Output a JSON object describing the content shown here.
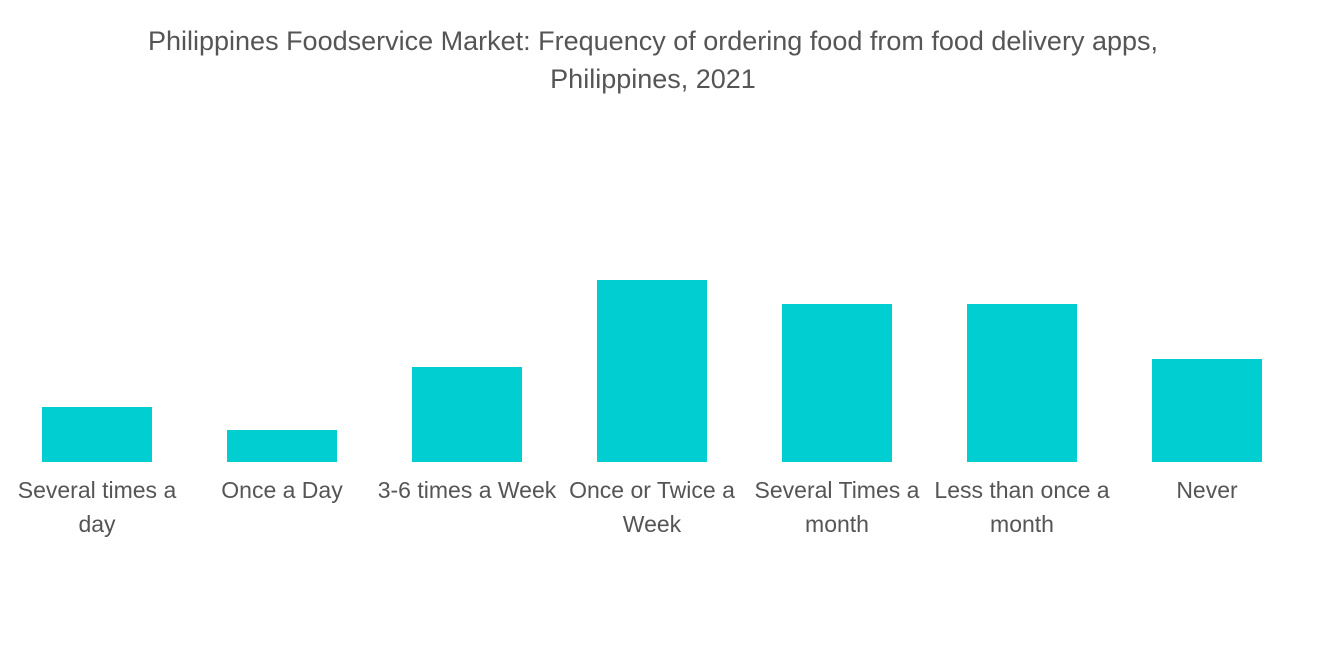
{
  "chart_data": {
    "type": "bar",
    "title": [
      "Philippines Foodservice Market: Frequency of ordering food from food delivery apps,",
      "Philippines, 2021"
    ],
    "categories": [
      "Several times a day",
      "Once a Day",
      "3-6 times a Week",
      "Once or Twice a Week",
      "Several Times a month",
      "Less than once a month",
      "Never"
    ],
    "values": [
      7,
      4,
      12,
      23,
      20,
      20,
      13
    ],
    "color": "#00ced1"
  }
}
